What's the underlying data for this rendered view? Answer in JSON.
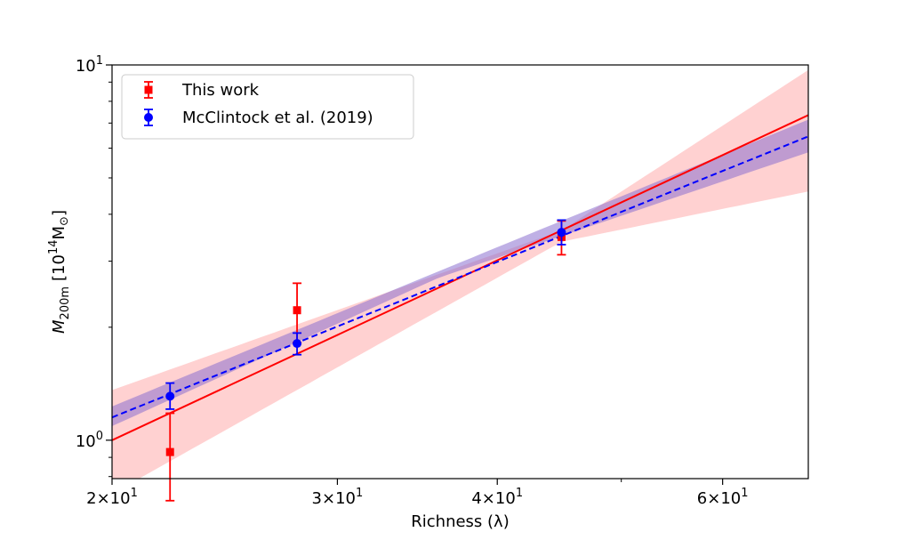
{
  "chart_data": {
    "type": "scatter",
    "x_scale": "log",
    "y_scale": "log",
    "xlim": [
      20,
      70
    ],
    "ylim": [
      0.79,
      10
    ],
    "xlabel": "Richness (λ)",
    "ylabel": {
      "symbol": "M",
      "subscript": "200m",
      "units_prefix": "[10",
      "units_exponent": "14",
      "units_suffix": "M",
      "units_sub": "⊙",
      "units_close": "]"
    },
    "x_major_ticks": [
      {
        "value": 20,
        "base": "2×10",
        "exp": "1"
      },
      {
        "value": 30,
        "base": "3×10",
        "exp": "1"
      },
      {
        "value": 40,
        "base": "4×10",
        "exp": "1"
      },
      {
        "value": 60,
        "base": "6×10",
        "exp": "1"
      }
    ],
    "x_minor_ticks": [
      50
    ],
    "y_major_ticks": [
      {
        "value": 1,
        "base": "10",
        "exp": "0"
      },
      {
        "value": 10,
        "base": "10",
        "exp": "1"
      }
    ],
    "y_minor_ticks": [
      0.8,
      0.9,
      2,
      3,
      4,
      5,
      6,
      7,
      8,
      9
    ],
    "legend": {
      "position": "top-left"
    },
    "series": [
      {
        "name": "This work",
        "color": "#ff0000",
        "band_color": "#ff9999",
        "marker": "square",
        "points": [
          {
            "x": 22.2,
            "y": 0.93,
            "ylo": 0.69,
            "yhi": 1.18
          },
          {
            "x": 27.9,
            "y": 2.22,
            "ylo": 1.82,
            "yhi": 2.62
          },
          {
            "x": 44.9,
            "y": 3.48,
            "ylo": 3.12,
            "yhi": 3.84
          }
        ],
        "fit": {
          "style": "solid",
          "x": [
            20,
            70
          ],
          "y": [
            1.0,
            7.35
          ]
        },
        "band": {
          "x": [
            20,
            44.9,
            70
          ],
          "lower": [
            0.72,
            3.38,
            4.6
          ],
          "upper": [
            1.36,
            3.62,
            9.7
          ]
        }
      },
      {
        "name": "McClintock et al. (2019)",
        "color": "#0000ff",
        "band_color": "#8a6fcf",
        "marker": "circle",
        "points": [
          {
            "x": 22.2,
            "y": 1.31,
            "ylo": 1.21,
            "yhi": 1.42
          },
          {
            "x": 27.9,
            "y": 1.81,
            "ylo": 1.69,
            "yhi": 1.93
          },
          {
            "x": 44.9,
            "y": 3.58,
            "ylo": 3.32,
            "yhi": 3.86
          }
        ],
        "fit": {
          "style": "dashed",
          "x": [
            20,
            70
          ],
          "y": [
            1.15,
            6.45
          ]
        },
        "band": {
          "x": [
            20,
            36,
            70
          ],
          "lower": [
            1.09,
            2.71,
            5.85
          ],
          "upper": [
            1.23,
            2.82,
            7.15
          ]
        }
      }
    ]
  }
}
